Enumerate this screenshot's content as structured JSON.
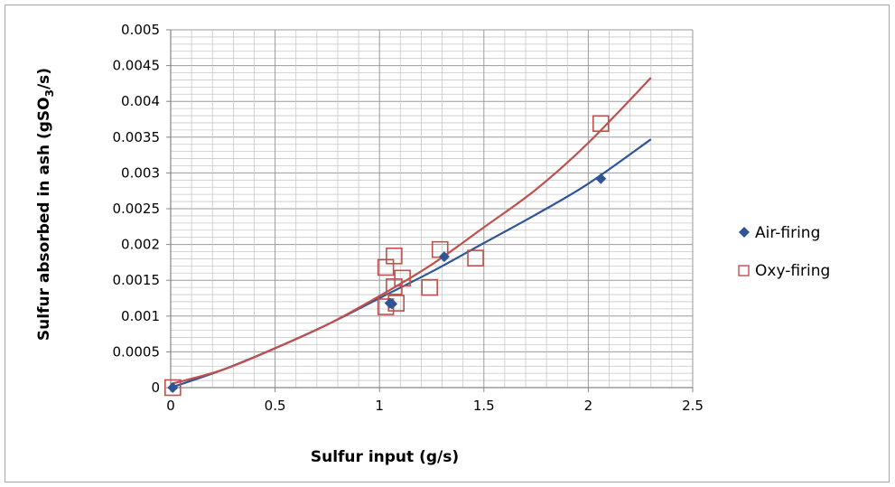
{
  "chart_data": {
    "type": "scatter",
    "title": "",
    "xlabel": "Sulfur input (g/s)",
    "ylabel": "Sulfur absorbed in ash (gSO₃/s)",
    "ylabel_parts": {
      "pre": "Sulfur absorbed in ash (gSO",
      "sub": "3",
      "post": "/s)"
    },
    "xlim": [
      0,
      2.5
    ],
    "ylim": [
      0,
      0.005
    ],
    "x_ticks": [
      "0",
      "0.5",
      "1",
      "1.5",
      "2",
      "2.5"
    ],
    "x_tick_values": [
      0,
      0.5,
      1,
      1.5,
      2,
      2.5
    ],
    "y_ticks": [
      "0",
      "0.0005",
      "0.001",
      "0.0015",
      "0.002",
      "0.0025",
      "0.003",
      "0.0035",
      "0.004",
      "0.0045",
      "0.005"
    ],
    "y_tick_values": [
      0,
      0.0005,
      0.001,
      0.0015,
      0.002,
      0.0025,
      0.003,
      0.0035,
      0.004,
      0.0045,
      0.005
    ],
    "grid": true,
    "legend_position": "right",
    "series": [
      {
        "name": "Air-firing",
        "marker": "diamond",
        "color": "#2f5597",
        "points": [
          [
            0.01,
            0.0
          ],
          [
            1.05,
            0.00118
          ],
          [
            1.06,
            0.00117
          ],
          [
            1.31,
            0.00183
          ],
          [
            2.06,
            0.00292
          ]
        ],
        "trendline": {
          "x_range": [
            0.0,
            2.3
          ],
          "points": [
            [
              0.0,
              0.0
            ],
            [
              0.25,
              0.00025
            ],
            [
              0.5,
              0.00055
            ],
            [
              0.75,
              0.00088
            ],
            [
              1.0,
              0.00125
            ],
            [
              1.25,
              0.00162
            ],
            [
              1.5,
              0.00202
            ],
            [
              1.75,
              0.00242
            ],
            [
              2.0,
              0.00285
            ],
            [
              2.3,
              0.00347
            ]
          ]
        }
      },
      {
        "name": "Oxy-firing",
        "marker": "square-open",
        "color": "#c0504d",
        "points": [
          [
            0.01,
            0.0
          ],
          [
            1.03,
            0.00168
          ],
          [
            1.03,
            0.00113
          ],
          [
            1.07,
            0.00184
          ],
          [
            1.08,
            0.00118
          ],
          [
            1.07,
            0.00141
          ],
          [
            1.11,
            0.00153
          ],
          [
            1.24,
            0.0014
          ],
          [
            1.29,
            0.00193
          ],
          [
            1.46,
            0.00181
          ],
          [
            2.06,
            0.00369
          ]
        ],
        "trendline": {
          "x_range": [
            0.0,
            2.3
          ],
          "points": [
            [
              0.0,
              5e-05
            ],
            [
              0.25,
              0.00025
            ],
            [
              0.5,
              0.00055
            ],
            [
              0.75,
              0.00088
            ],
            [
              1.0,
              0.00128
            ],
            [
              1.25,
              0.00172
            ],
            [
              1.5,
              0.00224
            ],
            [
              1.75,
              0.00277
            ],
            [
              2.0,
              0.00342
            ],
            [
              2.3,
              0.00433
            ]
          ]
        }
      }
    ]
  }
}
